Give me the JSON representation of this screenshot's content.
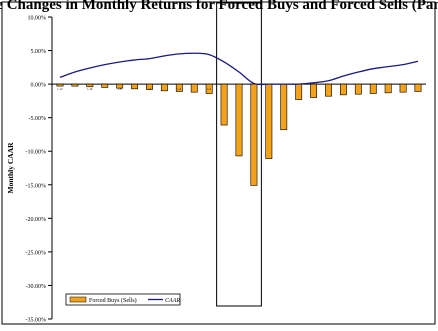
{
  "chart_data": {
    "type": "bar",
    "title": "e Changes in Monthly Returns for Forced Buys and Forced Sells (Pan",
    "ylabel": "Monthly CAAR",
    "ylim": [
      -35,
      10
    ],
    "y_tick_labels": [
      "10.00%",
      "5.00%",
      "0.00%",
      "-5.00%",
      "-10.00%",
      "-15.00%",
      "-20.00%",
      "-25.00%",
      "-30.00%",
      "-35.00%"
    ],
    "x_tick_labels": [
      "t-12",
      "t-10",
      "t-8",
      "t-6",
      "t-4",
      "t-2"
    ],
    "grid": false,
    "legend_position": "bottom-left",
    "highlight_window": [
      -1,
      1
    ],
    "x": [
      -12,
      -11,
      -10,
      -9,
      -8,
      -7,
      -6,
      -5,
      -4,
      -3,
      -2,
      -1,
      0,
      1,
      2,
      3,
      4,
      5,
      6,
      7,
      8,
      9,
      10,
      11,
      12
    ],
    "series": [
      {
        "name": "Forced Buys (Sells)",
        "kind": "bar",
        "color": "#f5a21b",
        "values": [
          -0.3,
          -0.3,
          -0.4,
          -0.5,
          -0.6,
          -0.7,
          -0.8,
          -1.0,
          -1.1,
          -1.2,
          -1.4,
          -6.1,
          -10.7,
          -15.1,
          -11.1,
          -6.8,
          -2.3,
          -2.0,
          -1.8,
          -1.6,
          -1.5,
          -1.4,
          -1.3,
          -1.2,
          -1.1
        ]
      },
      {
        "name": "CAAR",
        "kind": "line",
        "color": "#1a1a80",
        "values": [
          1.0,
          1.8,
          2.4,
          2.9,
          3.3,
          3.6,
          3.8,
          4.2,
          4.5,
          4.6,
          4.4,
          3.3,
          1.8,
          0.1,
          0.0,
          0.0,
          0.0,
          0.2,
          0.5,
          1.2,
          1.8,
          2.3,
          2.6,
          2.9,
          3.4
        ]
      }
    ]
  }
}
